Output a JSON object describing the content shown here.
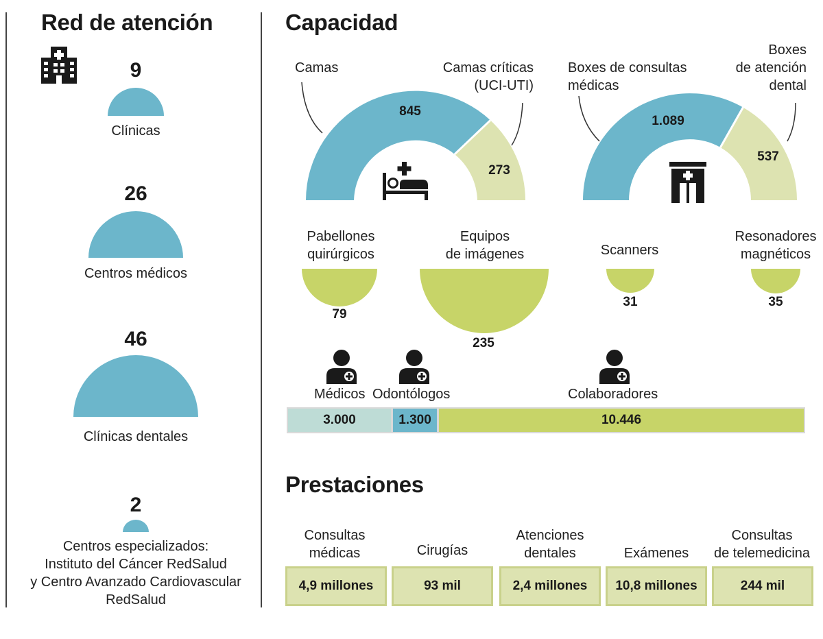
{
  "colors": {
    "blue": "#6cb6cb",
    "pale": "#dde3b1",
    "green": "#c7d468",
    "teal_light": "#bedcd6",
    "dark": "#1a1a1a"
  },
  "red": {
    "title": "Red de atención",
    "icon": "hospital-building-icon",
    "items": [
      {
        "value": "9",
        "label": "Clínicas"
      },
      {
        "value": "26",
        "label": "Centros médicos"
      },
      {
        "value": "46",
        "label": "Clínicas dentales"
      },
      {
        "value": "2",
        "label_lines": [
          "Centros especializados:",
          "Instituto del Cáncer RedSalud",
          "y Centro Avanzado Cardiovascular",
          "RedSalud"
        ]
      }
    ]
  },
  "capacidad": {
    "title": "Capacidad",
    "camas": {
      "label": "Camas",
      "value": "845"
    },
    "criticas": {
      "label_lines": [
        "Camas críticas",
        "(UCI-UTI)"
      ],
      "value": "273"
    },
    "boxes_medicas": {
      "label_lines": [
        "Boxes de consultas",
        "médicas"
      ],
      "value": "1.089"
    },
    "boxes_dental": {
      "label_lines": [
        "Boxes",
        "de atención",
        "dental"
      ],
      "value": "537"
    },
    "pabellones": {
      "label_lines": [
        "Pabellones",
        "quirúrgicos"
      ],
      "value": "79"
    },
    "equipos": {
      "label_lines": [
        "Equipos",
        "de imágenes"
      ],
      "value": "235"
    },
    "scanners": {
      "label": "Scanners",
      "value": "31"
    },
    "resonadores": {
      "label_lines": [
        "Resonadores",
        "magnéticos"
      ],
      "value": "35"
    },
    "icons": [
      "hospital-bed-icon",
      "door-icon",
      "doctor-icon"
    ]
  },
  "staff": {
    "medicos": {
      "label": "Médicos",
      "value": "3.000"
    },
    "odontologos": {
      "label": "Odontólogos",
      "value": "1.300"
    },
    "colaboradores": {
      "label": "Colaboradores",
      "value": "10.446"
    }
  },
  "prestaciones": {
    "title": "Prestaciones",
    "items": [
      {
        "label_lines": [
          "Consultas",
          "médicas"
        ],
        "value": "4,9 millones"
      },
      {
        "label_lines": [
          "Cirugías"
        ],
        "value": "93 mil"
      },
      {
        "label_lines": [
          "Atenciones",
          "dentales"
        ],
        "value": "2,4 millones"
      },
      {
        "label_lines": [
          "Exámenes"
        ],
        "value": "10,8 millones"
      },
      {
        "label_lines": [
          "Consultas",
          "de telemedicina"
        ],
        "value": "244 mil"
      }
    ]
  },
  "chart_data": [
    {
      "type": "pie",
      "title": "Red de atención",
      "categories": [
        "Clínicas",
        "Centros médicos",
        "Clínicas dentales",
        "Centros especializados"
      ],
      "values": [
        9,
        26,
        46,
        2
      ]
    },
    {
      "type": "pie",
      "title": "Capacidad",
      "categories": [
        "Camas",
        "Camas críticas (UCI-UTI)"
      ],
      "values": [
        845,
        273
      ]
    },
    {
      "type": "pie",
      "categories": [
        "Boxes de consultas médicas",
        "Boxes de atención dental"
      ],
      "values": [
        1089,
        537
      ]
    },
    {
      "type": "pie",
      "categories": [
        "Pabellones quirúrgicos",
        "Equipos de imágenes",
        "Scanners",
        "Resonadores magnéticos"
      ],
      "values": [
        79,
        235,
        31,
        35
      ]
    },
    {
      "type": "bar",
      "categories": [
        "Médicos",
        "Odontólogos",
        "Colaboradores"
      ],
      "values": [
        3000,
        1300,
        10446
      ]
    },
    {
      "type": "table",
      "title": "Prestaciones",
      "categories": [
        "Consultas médicas",
        "Cirugías",
        "Atenciones dentales",
        "Exámenes",
        "Consultas de telemedicina"
      ],
      "values": [
        "4,9 millones",
        "93 mil",
        "2,4 millones",
        "10,8 millones",
        "244 mil"
      ]
    }
  ]
}
